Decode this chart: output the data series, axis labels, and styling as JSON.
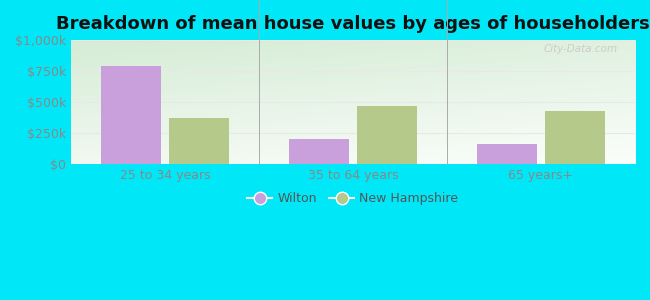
{
  "title": "Breakdown of mean house values by ages of householders",
  "categories": [
    "25 to 34 years",
    "35 to 64 years",
    "65 years+"
  ],
  "wilton_values": [
    790000,
    200000,
    165000
  ],
  "nh_values": [
    370000,
    470000,
    430000
  ],
  "wilton_color": "#c9a0dc",
  "nh_color": "#b5c98a",
  "background_outer": "#00e8f8",
  "ylim": [
    0,
    1000000
  ],
  "yticks": [
    0,
    250000,
    500000,
    750000,
    1000000
  ],
  "ytick_labels": [
    "$0",
    "$250k",
    "$500k",
    "$750k",
    "$1,000k"
  ],
  "bar_width": 0.32,
  "legend_labels": [
    "Wilton",
    "New Hampshire"
  ],
  "title_fontsize": 13,
  "tick_fontsize": 9,
  "legend_fontsize": 9,
  "grid_color": "#d8eed8",
  "watermark": "City-Data.com"
}
